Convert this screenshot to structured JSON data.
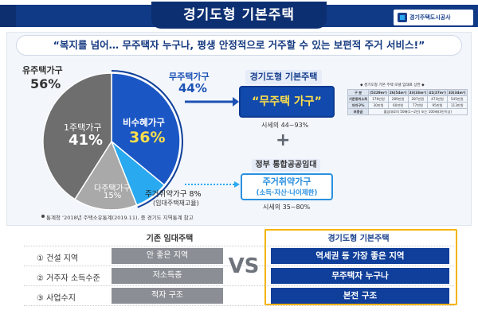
{
  "header": {
    "title": "경기도형 기본주택",
    "logo_text": "경기주택도시공사"
  },
  "slogan": "“복지를 넘어… 무주택자 누구나, 평생 안정적으로 거주할 수 있는 보편적 주거 서비스!”",
  "chart_data": {
    "type": "pie",
    "slices": [
      {
        "name": "유주택가구",
        "value": 56,
        "color": "#f2f2f2"
      },
      {
        "name": "무주택가구",
        "value": 44
      }
    ],
    "sub_slices": [
      {
        "name": "1주택가구",
        "value": 41,
        "color": "#6e6e6e"
      },
      {
        "name": "다주택가구",
        "value": 15,
        "color": "#a9a9a9"
      },
      {
        "name": "비수혜가구",
        "value": 36,
        "color": "#1a56c4"
      },
      {
        "name": "주거취약가구",
        "value": 8,
        "color": "#29a9f0"
      }
    ]
  },
  "pie_labels": {
    "owner_title": "유주택가구",
    "owner_pct": "56%",
    "nohome_title": "무주택가구",
    "nohome_pct": "44%",
    "one_name": "1주택가구",
    "one_pct": "41%",
    "nonben_name": "비수혜가구",
    "nonben_pct": "36%",
    "multi_name": "다주택가구",
    "multi_pct": "15%",
    "vuln_name": "주거취약가구 8%",
    "vuln_sub": "(임대주택재고율)"
  },
  "source_note": "통계청 ‘2018년 주택소유통계(2019.11), 중 경기도 지역통계 참고",
  "gg": {
    "label": "경기도형 기본주택",
    "main": "“무주택 가구”",
    "rent": "시세의 44~93%"
  },
  "plus": "+",
  "pub": {
    "label": "정부 통합공공임대",
    "name": "주거취약가구",
    "sub": "(소득·자산·나이제한)",
    "rent": "시세의 35~80%"
  },
  "mini_table": {
    "title": "◆ 경기도형 기본 주택 모델 임대료 상한 ◆",
    "rows": [
      [
        "구 분",
        "(5229m²)",
        "26(54m²)",
        "33(33m²)",
        "41(37m²)",
        "33(34m²)"
      ],
      [
        "기준중위소득",
        "176만원",
        "289만원",
        "287만원",
        "473만원",
        "545만원"
      ],
      [
        "자치구%",
        "30만원",
        "60만원",
        "77만원",
        "95만원",
        "113만원"
      ],
      [
        "보증금",
        "월임대료의 50배(1~2인) 또는 100배(3인이상)",
        "",
        "",
        "",
        ""
      ]
    ]
  },
  "compare": {
    "left_header": "기존 임대주택",
    "right_header": "경기도형 기본주택",
    "vs": "VS",
    "rows": [
      {
        "label": "① 건설 지역",
        "left": "안 좋은 지역",
        "right": "역세권 등 가장 좋은 지역"
      },
      {
        "label": "② 거주자 소득수준",
        "left": "저소득층",
        "right": "무주택자 누구나"
      },
      {
        "label": "③ 사업수지",
        "left": "적자 구조",
        "right": "본전 구조"
      }
    ]
  }
}
